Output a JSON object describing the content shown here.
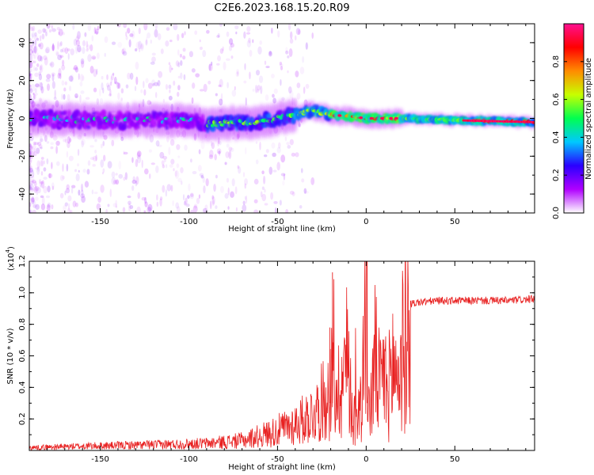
{
  "title": "C2E6.2023.168.15.20.R09",
  "chart_data": [
    {
      "type": "heatmap",
      "xlabel": "Height of straight line (km)",
      "ylabel": "Frequency (Hz)",
      "xlim": [
        -190,
        95
      ],
      "ylim": [
        -50,
        50
      ],
      "xticks": [
        -150,
        -100,
        -50,
        0,
        50
      ],
      "xtick_labels": [
        "-150",
        "-100",
        "-50",
        "0",
        "50"
      ],
      "yticks": [
        -40,
        -20,
        0,
        20,
        40
      ],
      "ytick_labels": [
        "-40",
        "-20",
        "0",
        "20",
        "40"
      ],
      "colorbar": {
        "label": "Normalized spectral amplitude",
        "range": [
          0,
          1
        ],
        "ticks": [
          0.0,
          0.2,
          0.4,
          0.6,
          0.8
        ],
        "tick_labels": [
          "0.0",
          "0.2",
          "0.4",
          "0.6",
          "0.8"
        ],
        "colormap": [
          "#ffffff",
          "#b000ff",
          "#2a00ff",
          "#00c8ff",
          "#00ff50",
          "#c8ff00",
          "#ff8c00",
          "#ff0000",
          "#ff1090"
        ]
      },
      "ridge": {
        "height": [
          -190,
          -150,
          -100,
          -90,
          -60,
          -40,
          -30,
          -20,
          -10,
          0,
          20,
          50,
          95
        ],
        "frequency": [
          0,
          -1,
          -1,
          -3,
          -2,
          2,
          4,
          2,
          1,
          0,
          0,
          -1,
          -2
        ]
      }
    },
    {
      "type": "line",
      "xlabel": "Height of straight line (km)",
      "ylabel": "SNR (10 * v/v)",
      "exponent_label": "(x10",
      "exponent_power": "4",
      "exponent_close": ")",
      "xlim": [
        -190,
        95
      ],
      "ylim": [
        0,
        1.2
      ],
      "xticks": [
        -150,
        -100,
        -50,
        0,
        50
      ],
      "xtick_labels": [
        "-150",
        "-100",
        "-50",
        "0",
        "50"
      ],
      "yticks": [
        0.2,
        0.4,
        0.6,
        0.8,
        1.0,
        1.2
      ],
      "ytick_labels": [
        "0.2",
        "0.4",
        "0.6",
        "0.8",
        "1.0",
        "1.2"
      ],
      "series": [
        {
          "name": "SNR",
          "color": "#e82020",
          "x": [
            -190,
            -160,
            -120,
            -90,
            -70,
            -55,
            -45,
            -35,
            -28,
            -22,
            -20,
            -15,
            -10,
            -8,
            -5,
            -2,
            0,
            2,
            5,
            8,
            10,
            12,
            15,
            18,
            20,
            22,
            25,
            30,
            40,
            60,
            80,
            95
          ],
          "y": [
            0.02,
            0.03,
            0.04,
            0.05,
            0.07,
            0.12,
            0.16,
            0.22,
            0.28,
            0.4,
            0.55,
            0.48,
            0.78,
            0.32,
            0.18,
            0.62,
            1.1,
            0.26,
            0.72,
            0.48,
            0.62,
            0.44,
            0.68,
            0.58,
            0.74,
            0.9,
            0.93,
            0.94,
            0.95,
            0.95,
            0.95,
            0.96
          ]
        }
      ]
    }
  ]
}
